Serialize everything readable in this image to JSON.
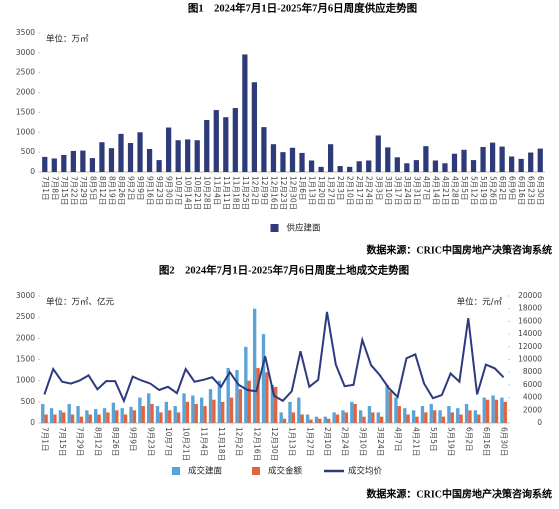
{
  "chart_data": [
    {
      "type": "bar",
      "title": "图1　2024年7月1日-2025年7月6日周度供应走势图",
      "y_unit": "单位：万㎡",
      "source": "数据来源：CRIC中国房地产决策咨询系统",
      "categories": [
        "7月1日",
        "7月8日",
        "7月15日",
        "7月22日",
        "7月29日",
        "8月5日",
        "8月12日",
        "8月19日",
        "8月26日",
        "9月2日",
        "9月9日",
        "9月16日",
        "9月23日",
        "9月30日",
        "10月7日",
        "10月14日",
        "10月21日",
        "10月28日",
        "11月4日",
        "11月11日",
        "11月18日",
        "11月25日",
        "12月2日",
        "12月9日",
        "12月16日",
        "12月23日",
        "12月30日",
        "1月6日",
        "1月13日",
        "1月20日",
        "1月27日",
        "2月3日",
        "2月10日",
        "2月17日",
        "2月24日",
        "3月3日",
        "3月10日",
        "3月17日",
        "3月24日",
        "3月31日",
        "4月7日",
        "4月14日",
        "4月21日",
        "4月28日",
        "5月5日",
        "5月12日",
        "5月19日",
        "5月26日",
        "6月2日",
        "6月9日",
        "6月16日",
        "6月23日",
        "6月30日"
      ],
      "series": [
        {
          "name": "供应建面",
          "color": "#2e3b78",
          "type": "bar",
          "values": [
            380,
            340,
            430,
            530,
            540,
            350,
            750,
            600,
            960,
            730,
            1000,
            580,
            300,
            1120,
            800,
            820,
            800,
            1310,
            1560,
            1380,
            1610,
            2960,
            2260,
            1130,
            700,
            500,
            610,
            480,
            290,
            130,
            700,
            150,
            130,
            270,
            290,
            920,
            620,
            370,
            220,
            300,
            650,
            290,
            220,
            460,
            560,
            300,
            630,
            740,
            640,
            390,
            330,
            490,
            590
          ]
        }
      ],
      "ylim": [
        0,
        3500
      ],
      "yticks": [
        0,
        500,
        1000,
        1500,
        2000,
        2500,
        3000,
        3500
      ],
      "legend": "bottom"
    },
    {
      "type": "combo",
      "title": "图2　2024年7月1日-2025年7月6日周度土地成交走势图",
      "y_unit": "单位：万㎡、亿元",
      "y2_unit": "单位：元/㎡",
      "source": "数据来源：CRIC中国房地产决策咨询系统",
      "categories": [
        "7月1日",
        null,
        "7月15日",
        null,
        "7月29日",
        null,
        "8月12日",
        null,
        "8月26日",
        null,
        "9月9日",
        null,
        "9月23日",
        null,
        "10月7日",
        null,
        "10月21日",
        null,
        "11月4日",
        null,
        "11月18日",
        null,
        "12月2日",
        null,
        "12月16日",
        null,
        "12月30日",
        null,
        "1月13日",
        null,
        "1月27日",
        null,
        "2月10日",
        null,
        "2月24日",
        null,
        "3月10日",
        null,
        "3月24日",
        null,
        "4月7日",
        null,
        "4月21日",
        null,
        "5月5日",
        null,
        "5月19日",
        null,
        "6月2日",
        null,
        "6月16日",
        null,
        "6月30日"
      ],
      "series": [
        {
          "name": "成交建面",
          "color": "#5aa3d6",
          "type": "bar",
          "values": [
            450,
            350,
            300,
            450,
            400,
            300,
            330,
            350,
            480,
            350,
            380,
            600,
            700,
            400,
            500,
            400,
            700,
            650,
            600,
            800,
            1000,
            1300,
            1250,
            1800,
            2700,
            2100,
            900,
            250,
            500,
            600,
            200,
            150,
            150,
            250,
            300,
            500,
            300,
            400,
            250,
            900,
            600,
            350,
            300,
            400,
            450,
            300,
            400,
            350,
            450,
            300,
            600,
            650,
            600
          ]
        },
        {
          "name": "成交金额",
          "color": "#e0643f",
          "type": "bar",
          "values": [
            200,
            200,
            250,
            200,
            150,
            200,
            200,
            250,
            300,
            200,
            300,
            400,
            450,
            250,
            300,
            250,
            500,
            450,
            400,
            550,
            500,
            600,
            800,
            1000,
            1300,
            1200,
            850,
            100,
            250,
            200,
            80,
            100,
            100,
            200,
            250,
            450,
            150,
            250,
            150,
            750,
            400,
            200,
            150,
            250,
            300,
            150,
            250,
            200,
            300,
            200,
            550,
            550,
            500
          ]
        },
        {
          "name": "成交均价",
          "color": "#2e3a80",
          "type": "line",
          "axis": "y2",
          "values": [
            4500,
            8500,
            6500,
            6200,
            6700,
            7500,
            5300,
            6600,
            6600,
            3500,
            7300,
            6700,
            6200,
            5200,
            5700,
            4700,
            8500,
            6500,
            6800,
            7200,
            5700,
            8000,
            6000,
            5200,
            5000,
            10500,
            4300,
            3500,
            5000,
            11300,
            5700,
            6800,
            17500,
            9200,
            5800,
            6000,
            13100,
            9100,
            7500,
            5500,
            4100,
            10200,
            10800,
            6200,
            3900,
            4400,
            7800,
            6500,
            16500,
            4500,
            9200,
            8600,
            7200
          ]
        }
      ],
      "ylim": [
        0,
        3000
      ],
      "yticks": [
        0,
        500,
        1000,
        1500,
        2000,
        2500,
        3000
      ],
      "y2lim": [
        0,
        20000
      ],
      "y2ticks": [
        0,
        2000,
        4000,
        6000,
        8000,
        10000,
        12000,
        14000,
        16000,
        18000,
        20000
      ],
      "legend": "bottom"
    }
  ]
}
